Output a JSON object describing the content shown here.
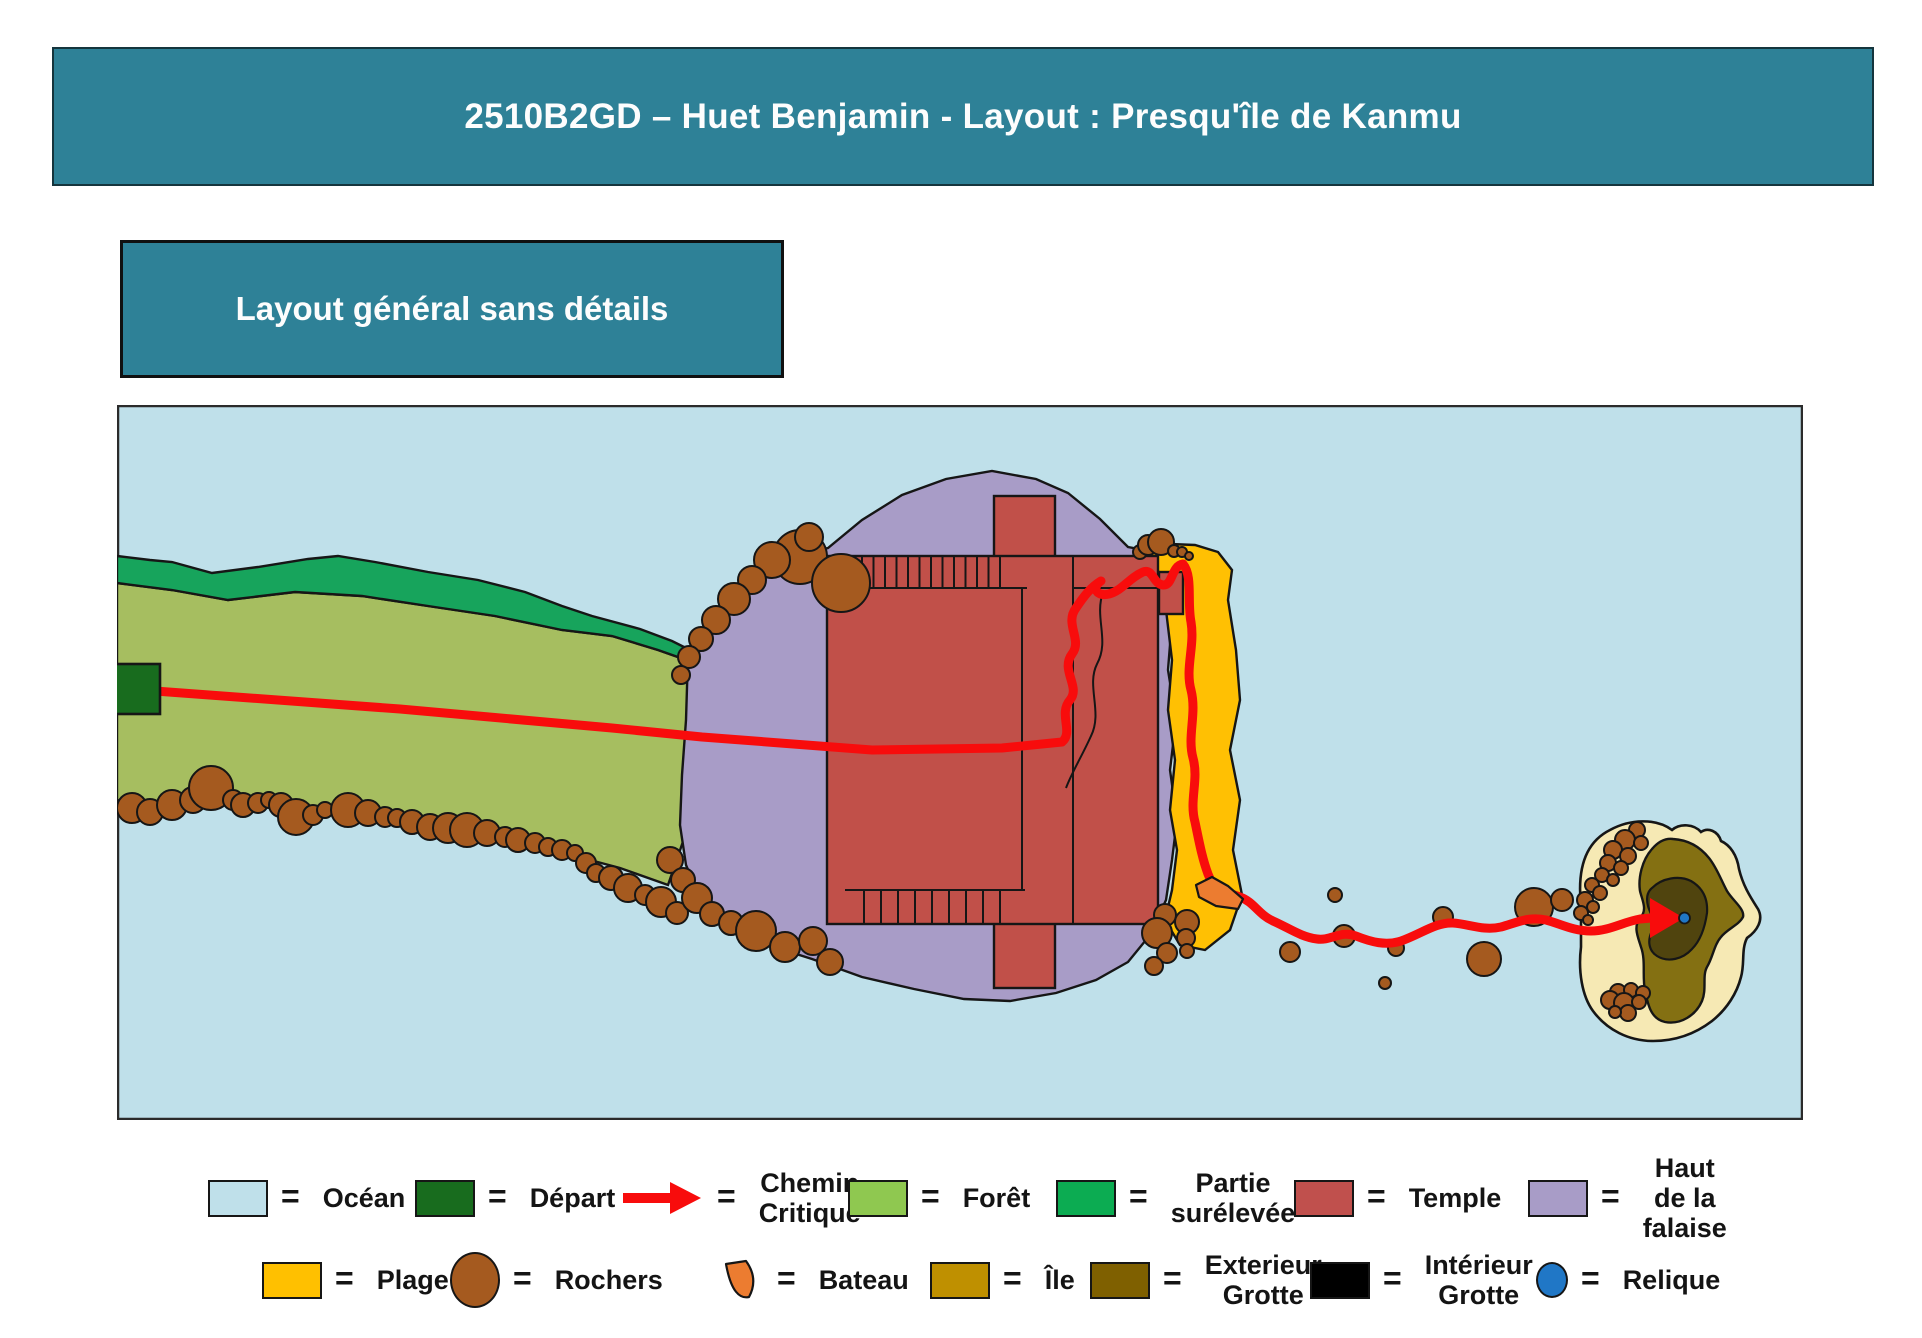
{
  "banner": {
    "title": "2510B2GD – Huet Benjamin - Layout : Presqu'île de Kanmu"
  },
  "subtitle": {
    "title": "Layout général sans détails"
  },
  "palette": {
    "banner": "#2E8197",
    "ocean": "#BFE0EA",
    "forest": "#A6BE60",
    "raised": "#17A45C",
    "depart": "#186C1E",
    "cliff": "#A89CC7",
    "temple": "#C15049",
    "beach": "#FFC003",
    "rock": "#A55A1F",
    "boat": "#EC7C30",
    "island_sand": "#F6E9B4",
    "cave_ext": "#847012",
    "cave_int": "#50440E",
    "relic": "#2077C6",
    "path": "#F80C0C"
  },
  "legend": {
    "rows": [
      {
        "items": [
          {
            "name": "ocean",
            "type": "rect",
            "color": "#BFE0EA",
            "label": "Océan"
          },
          {
            "name": "depart",
            "type": "rect",
            "color": "#186C1E",
            "label": "Départ"
          },
          {
            "name": "chemin-critique",
            "type": "arrow",
            "color": "#F80C0C",
            "label": "Chemin\nCritique"
          },
          {
            "name": "foret",
            "type": "rect",
            "color": "#8FC850",
            "label": "Forêt"
          },
          {
            "name": "partie-surelevee",
            "type": "rect",
            "color": "#0CAC52",
            "label": "Partie\nsurélevée"
          },
          {
            "name": "temple",
            "type": "rect",
            "color": "#C0504D",
            "label": "Temple"
          },
          {
            "name": "haut-falaise",
            "type": "rect",
            "color": "#A89CC7",
            "label": "Haut\nde la\nfalaise"
          }
        ]
      },
      {
        "items": [
          {
            "name": "plage",
            "type": "rect",
            "color": "#FFC000",
            "label": "Plage"
          },
          {
            "name": "rochers",
            "type": "circle",
            "color": "#A55A1F",
            "label": "Rochers"
          },
          {
            "name": "bateau",
            "type": "boat",
            "color": "#EC7C30",
            "label": "Bateau"
          },
          {
            "name": "ile",
            "type": "rect",
            "color": "#BF9000",
            "label": "Île"
          },
          {
            "name": "exterieur-grotte",
            "type": "rect",
            "color": "#7F6000",
            "label": "Exterieur\nGrotte"
          },
          {
            "name": "interieur-grotte",
            "type": "rect",
            "color": "#000000",
            "label": "Intérieur\nGrotte"
          },
          {
            "name": "relique",
            "type": "circle-small",
            "color": "#2077C6",
            "label": "Relique"
          }
        ]
      }
    ]
  }
}
